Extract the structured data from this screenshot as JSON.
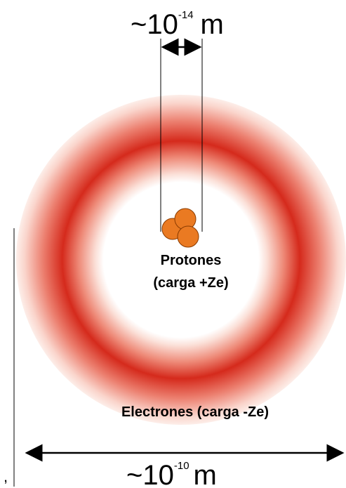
{
  "top_label": {
    "base": "~10",
    "exponent": "-14",
    "unit": "m"
  },
  "nucleus_label": {
    "line1": "Protones",
    "line2": "(carga +Ze)"
  },
  "electron_label": "Electrones (carga -Ze)",
  "bottom_label": {
    "base": "~10",
    "exponent": "-10",
    "unit": "m"
  },
  "stray_mark": ","
}
